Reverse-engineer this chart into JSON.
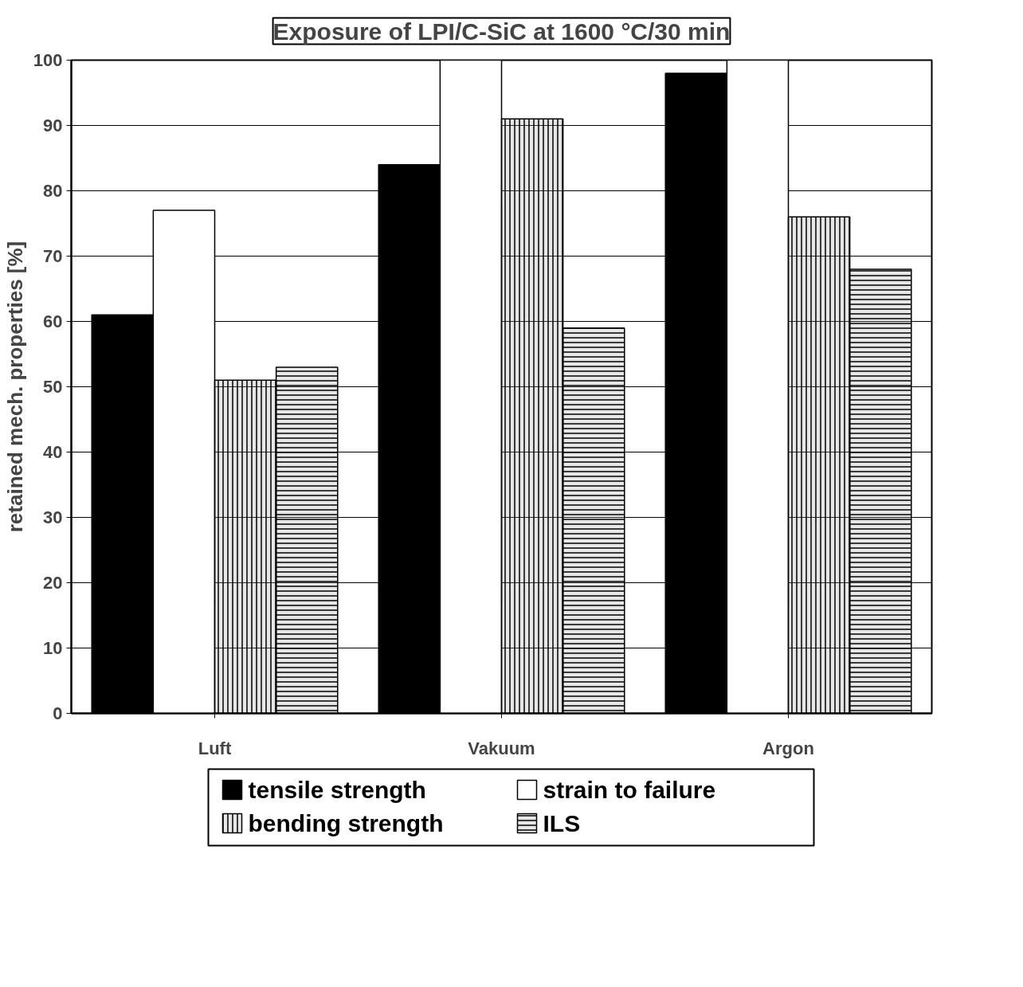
{
  "chart_data": {
    "type": "bar",
    "title": "Exposure of LPI/C-SiC at 1600 °C/30 min",
    "ylabel": "retained mech. properties [%]",
    "categories": [
      "Luft",
      "Vakuum",
      "Argon"
    ],
    "series": [
      {
        "name": "tensile strength",
        "color": "#000000",
        "values": [
          61,
          84,
          98
        ]
      },
      {
        "name": "strain to failure",
        "color": "#ffffff",
        "values": [
          77,
          100,
          100
        ]
      },
      {
        "name": "bending strength",
        "color": "#a0a0a0",
        "values": [
          51,
          91,
          76
        ]
      },
      {
        "name": "ILS",
        "color": "#a0a0a0",
        "values": [
          53,
          59,
          68
        ]
      }
    ],
    "ylim": [
      0,
      100
    ],
    "yticks": [
      0,
      10,
      20,
      30,
      40,
      50,
      60,
      70,
      80,
      90,
      100
    ],
    "grid": "y",
    "legend": "bottom"
  }
}
